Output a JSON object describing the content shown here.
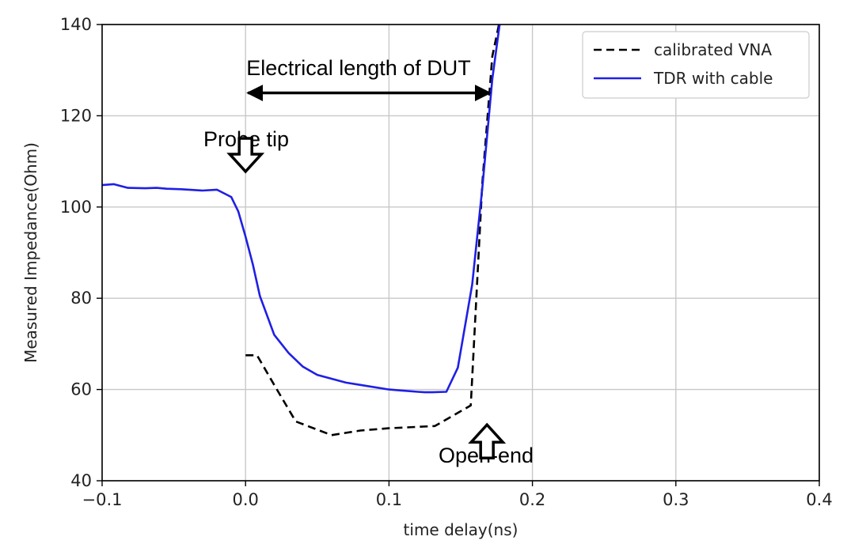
{
  "chart_data": {
    "type": "line",
    "xlabel": "time delay(ns)",
    "ylabel": "Measured Impedance(Ohm)",
    "xlim": [
      -0.1,
      0.4
    ],
    "ylim": [
      40,
      140
    ],
    "x_ticks": [
      -0.1,
      0.0,
      0.1,
      0.2,
      0.3,
      0.4
    ],
    "x_tick_labels": [
      "−0.1",
      "0.0",
      "0.1",
      "0.2",
      "0.3",
      "0.4"
    ],
    "y_ticks": [
      40,
      60,
      80,
      100,
      120,
      140
    ],
    "y_tick_labels": [
      "40",
      "60",
      "80",
      "100",
      "120",
      "140"
    ],
    "grid": true,
    "legend_position": "top-right",
    "series": [
      {
        "name": "calibrated VNA",
        "color": "#000000",
        "style": "dashed",
        "x": [
          0.0,
          0.008,
          0.02,
          0.035,
          0.06,
          0.08,
          0.1,
          0.132,
          0.157,
          0.165,
          0.172,
          0.178
        ],
        "y": [
          67.5,
          67.5,
          61,
          53,
          50,
          51,
          51.5,
          52,
          56.5,
          105,
          133,
          142
        ]
      },
      {
        "name": "TDR with cable",
        "color": "#1f1fe6",
        "style": "solid",
        "x": [
          -0.1,
          -0.092,
          -0.082,
          -0.07,
          -0.062,
          -0.055,
          -0.045,
          -0.03,
          -0.02,
          -0.01,
          -0.005,
          0.0,
          0.005,
          0.01,
          0.02,
          0.03,
          0.04,
          0.05,
          0.07,
          0.08,
          0.1,
          0.12,
          0.125,
          0.13,
          0.14,
          0.148,
          0.158,
          0.165,
          0.172,
          0.178
        ],
        "y": [
          104.8,
          105,
          104.2,
          104.1,
          104.2,
          104,
          103.9,
          103.6,
          103.8,
          102.2,
          99,
          93.5,
          87.5,
          80.5,
          72,
          68,
          65,
          63.2,
          61.5,
          61,
          60,
          59.5,
          59.4,
          59.4,
          59.5,
          64.8,
          83,
          104,
          128,
          142
        ]
      }
    ],
    "annotations": [
      {
        "text": "Electrical length of DUT",
        "arrow": "double-headed",
        "from_x": 0.0,
        "to_x": 0.172,
        "at_y": 125
      },
      {
        "text": "Probe tip",
        "arrow": "down",
        "at_x": 0.0,
        "at_y": 105
      },
      {
        "text": "Open-end",
        "arrow": "up",
        "at_x": 0.165,
        "at_y": 54
      }
    ]
  }
}
